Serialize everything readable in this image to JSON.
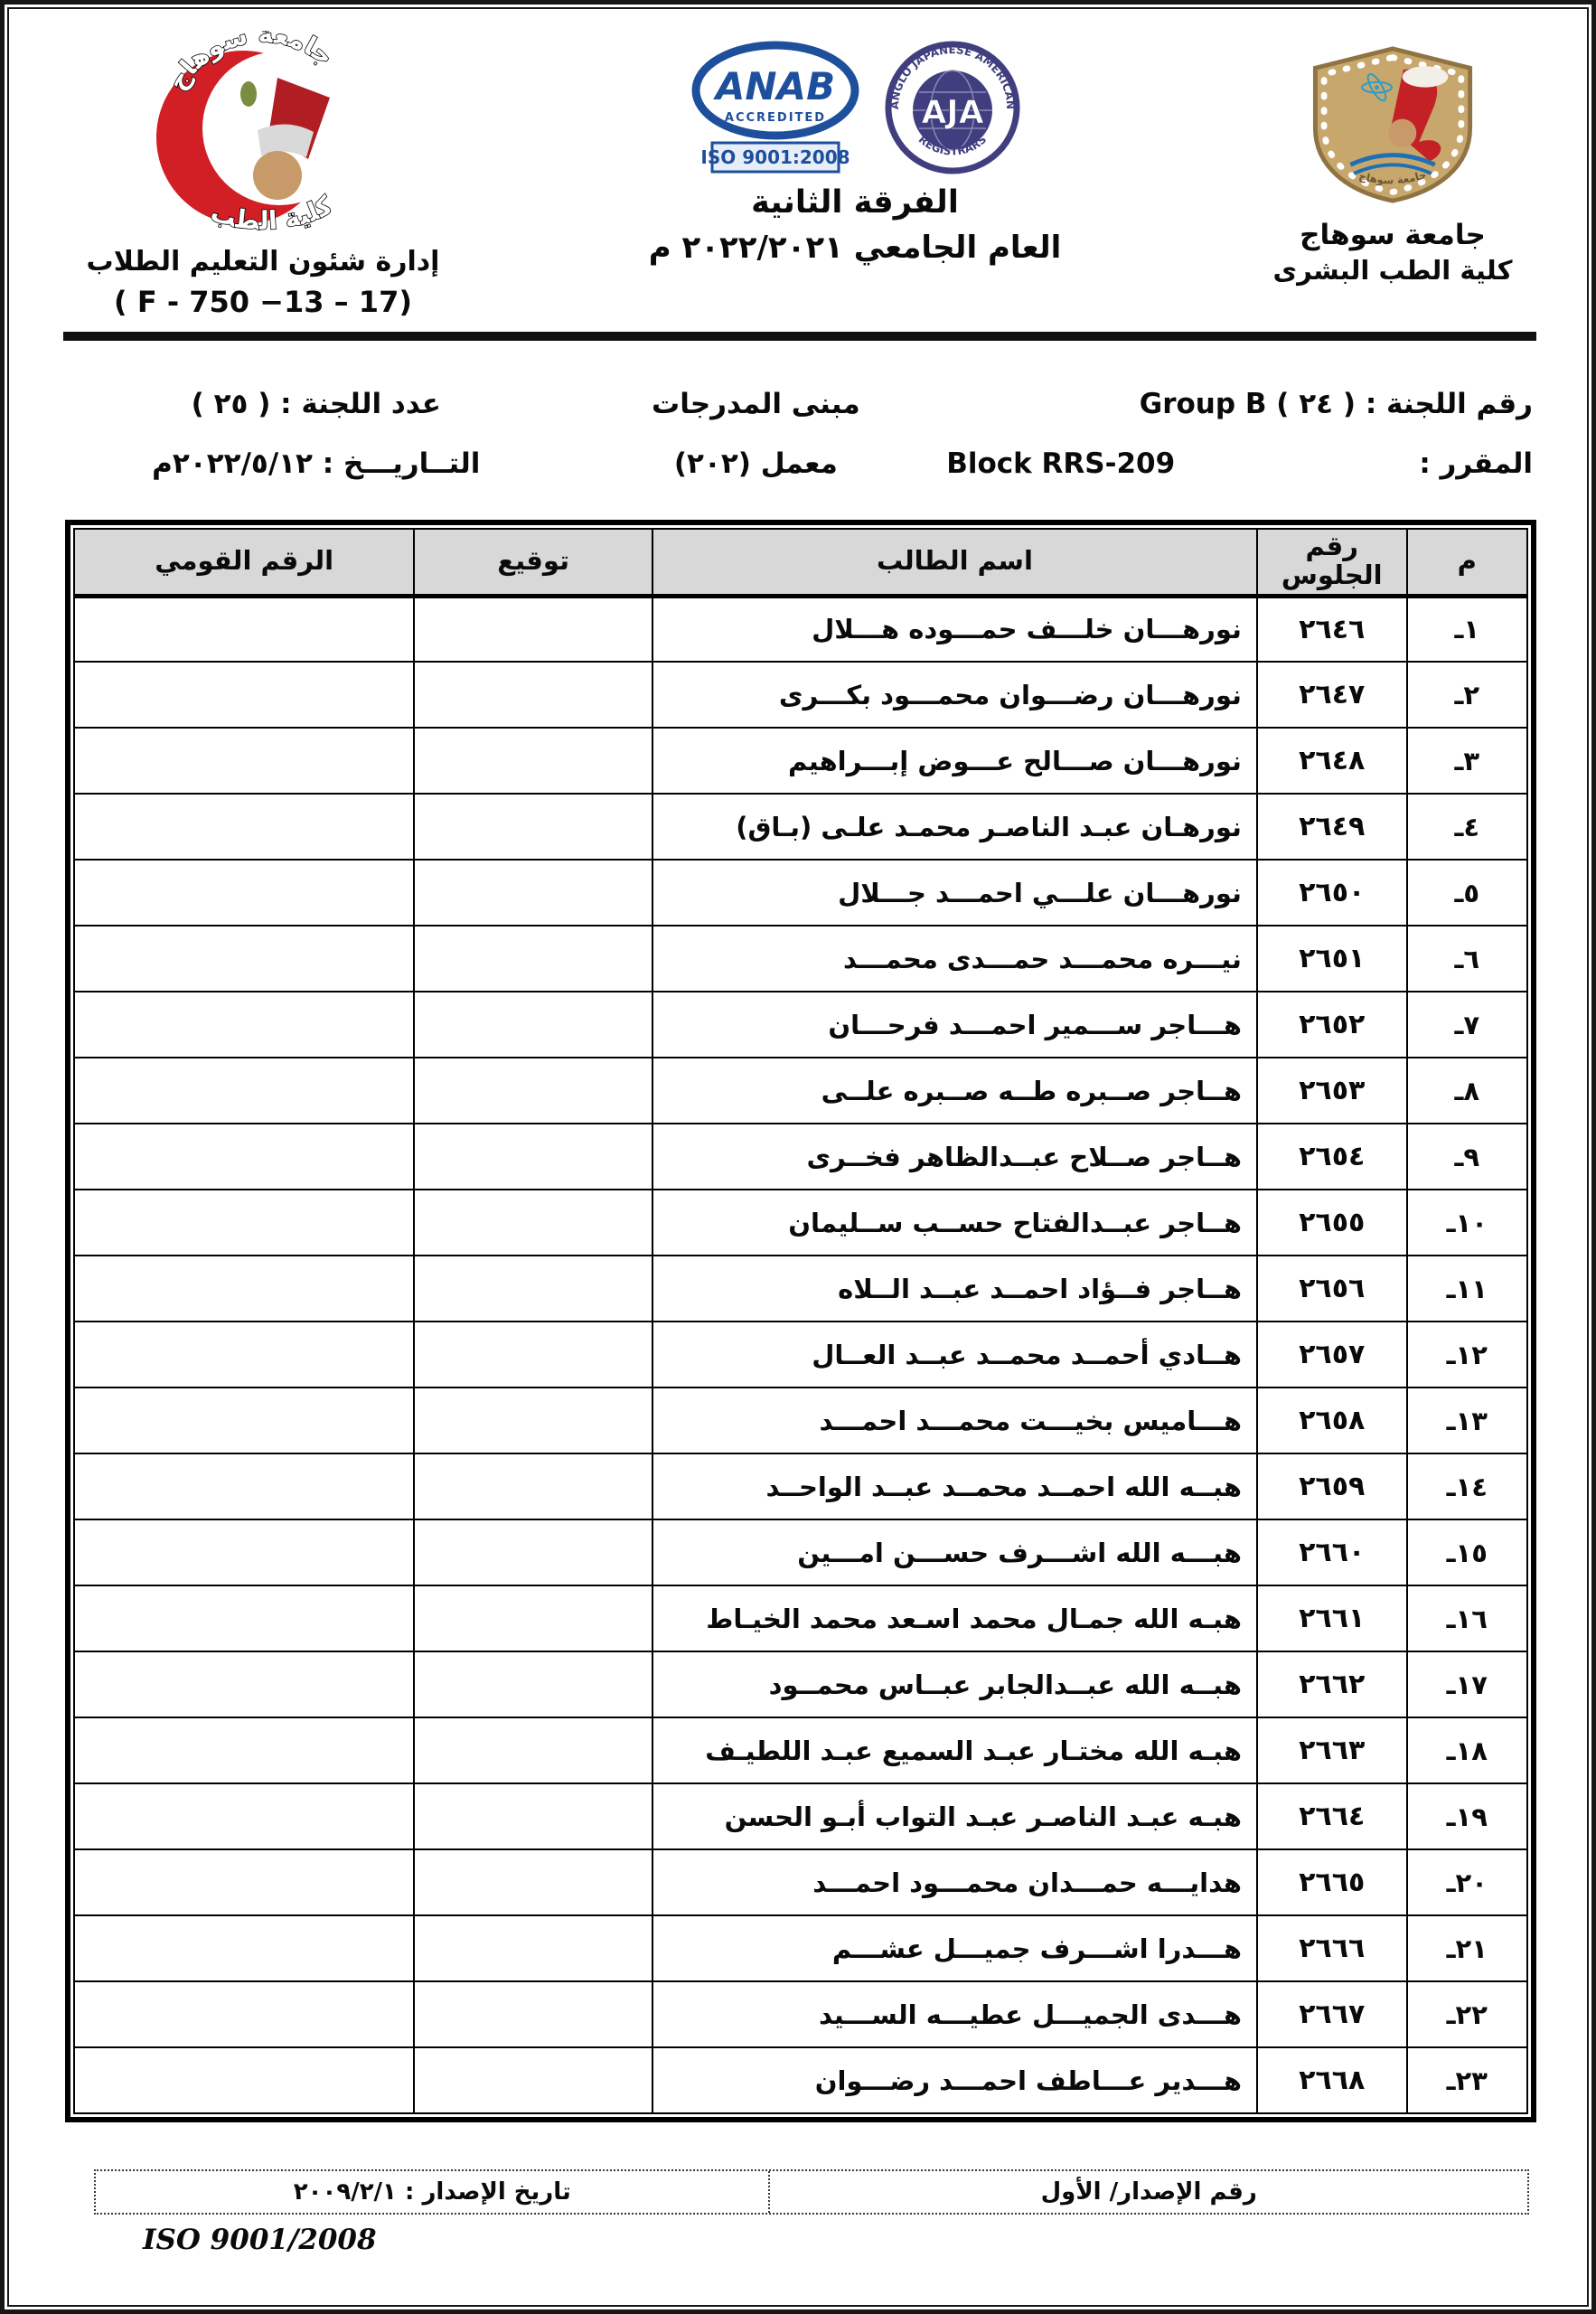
{
  "header": {
    "crescent_logo": {
      "top_text": "جامعة سوهاج",
      "bottom_text": "كلية الطب"
    },
    "admin_dept": "إدارة شئون التعليم الطلاب",
    "admin_code": "( F - 750 −13 – 17)",
    "anab": {
      "name": "ANAB",
      "accredited": "ACCREDITED",
      "iso": "ISO 9001:2008"
    },
    "aja": {
      "ring_top": "ANGLO JAPANESE AMERICAN",
      "name": "AJA",
      "ring_bottom": "REGISTRARS"
    },
    "title_line1": "الفرقة الثانية",
    "title_line2": "العام الجامعي ٢٠٢٢/٢٠٢١ م",
    "shield_ring_text": "جامعة سوهاج",
    "university": "جامعة سوهاج",
    "faculty": "كلية الطب البشرى"
  },
  "info": {
    "committee_no": "رقم اللجنة : ( ٢٤ )",
    "group": "Group B",
    "course_label": "المقرر :",
    "course_value": "Block RRS-209",
    "building": "مبنى المدرجات",
    "lab": "معمل (٢٠٢)",
    "committee_count": "عدد اللجنة : ( ٢٥ )",
    "date": "التــاريـــخ : ٢٠٢٢/٥/١٢م"
  },
  "table": {
    "headers": {
      "m": "م",
      "seat": "رقم الجلوس",
      "name": "اسم الطالب",
      "sign": "توقيع",
      "nid": "الرقم القومي"
    },
    "rows": [
      {
        "m": "١ـ",
        "seat": "٢٦٤٦",
        "name": "نورهـــان خلـــف حمـــوده هـــلال"
      },
      {
        "m": "٢ـ",
        "seat": "٢٦٤٧",
        "name": "نورهـــان رضـــوان محمـــود بكـــرى"
      },
      {
        "m": "٣ـ",
        "seat": "٢٦٤٨",
        "name": "نورهـــان صـــالح عـــوض إبـــراهيم"
      },
      {
        "m": "٤ـ",
        "seat": "٢٦٤٩",
        "name": "نورهـان عبـد الناصـر محمـد علـى (بـاق)"
      },
      {
        "m": "٥ـ",
        "seat": "٢٦٥٠",
        "name": "نورهـــان علـــي احمـــد جـــلال"
      },
      {
        "m": "٦ـ",
        "seat": "٢٦٥١",
        "name": "نيـــره محمـــد حمـــدى محمـــد"
      },
      {
        "m": "٧ـ",
        "seat": "٢٦٥٢",
        "name": "هـــاجر ســـمير احمـــد فرحـــان"
      },
      {
        "m": "٨ـ",
        "seat": "٢٦٥٣",
        "name": "هــاجر صــبره طــه صــبره علــى"
      },
      {
        "m": "٩ـ",
        "seat": "٢٦٥٤",
        "name": "هــاجر صــلاح عبــدالظاهر فخــرى"
      },
      {
        "m": "١٠ـ",
        "seat": "٢٦٥٥",
        "name": "هــاجر عبــدالفتاح حســب ســليمان"
      },
      {
        "m": "١١ـ",
        "seat": "٢٦٥٦",
        "name": "هــاجر فــؤاد احمــد عبــد الــلاه"
      },
      {
        "m": "١٢ـ",
        "seat": "٢٦٥٧",
        "name": "هــادي أحمــد محمــد عبــد العــال"
      },
      {
        "m": "١٣ـ",
        "seat": "٢٦٥٨",
        "name": "هـــاميس بخيـــت محمـــد احمـــد"
      },
      {
        "m": "١٤ـ",
        "seat": "٢٦٥٩",
        "name": "هبــه الله احمــد محمــد عبــد الواحــد"
      },
      {
        "m": "١٥ـ",
        "seat": "٢٦٦٠",
        "name": "هبـــه الله اشـــرف حســـن امـــين"
      },
      {
        "m": "١٦ـ",
        "seat": "٢٦٦١",
        "name": "هبـه الله جمـال محمد اسـعد محمد الخيـاط"
      },
      {
        "m": "١٧ـ",
        "seat": "٢٦٦٢",
        "name": "هبــه الله عبــدالجابر عبــاس محمــود"
      },
      {
        "m": "١٨ـ",
        "seat": "٢٦٦٣",
        "name": "هبـه الله مختـار عبـد السميع عبـد اللطيـف"
      },
      {
        "m": "١٩ـ",
        "seat": "٢٦٦٤",
        "name": "هبـه عبـد الناصـر عبـد التواب أبـو الحسن"
      },
      {
        "m": "٢٠ـ",
        "seat": "٢٦٦٥",
        "name": "هدايـــه حمـــدان محمـــود احمـــد"
      },
      {
        "m": "٢١ـ",
        "seat": "٢٦٦٦",
        "name": "هـــدرا اشـــرف جميـــل عشـــم"
      },
      {
        "m": "٢٢ـ",
        "seat": "٢٦٦٧",
        "name": "هـــدى الجميـــل عطيـــه الســـيد"
      },
      {
        "m": "٢٣ـ",
        "seat": "٢٦٦٨",
        "name": "هـــدير عـــاطف احمـــد رضـــوان"
      }
    ]
  },
  "footer": {
    "issue_no": "رقم الإصدار/ الأول",
    "issue_date": "تاريخ الإصدار : ٢٠٠٩/٢/١",
    "iso": "ISO 9001/2008"
  },
  "colors": {
    "anab_blue": "#1d4f9c",
    "aja_navy": "#403e7e",
    "shield_tan": "#c7a76c",
    "crescent_red": "#d21f26",
    "table_header_gray": "#d8d8d8"
  }
}
